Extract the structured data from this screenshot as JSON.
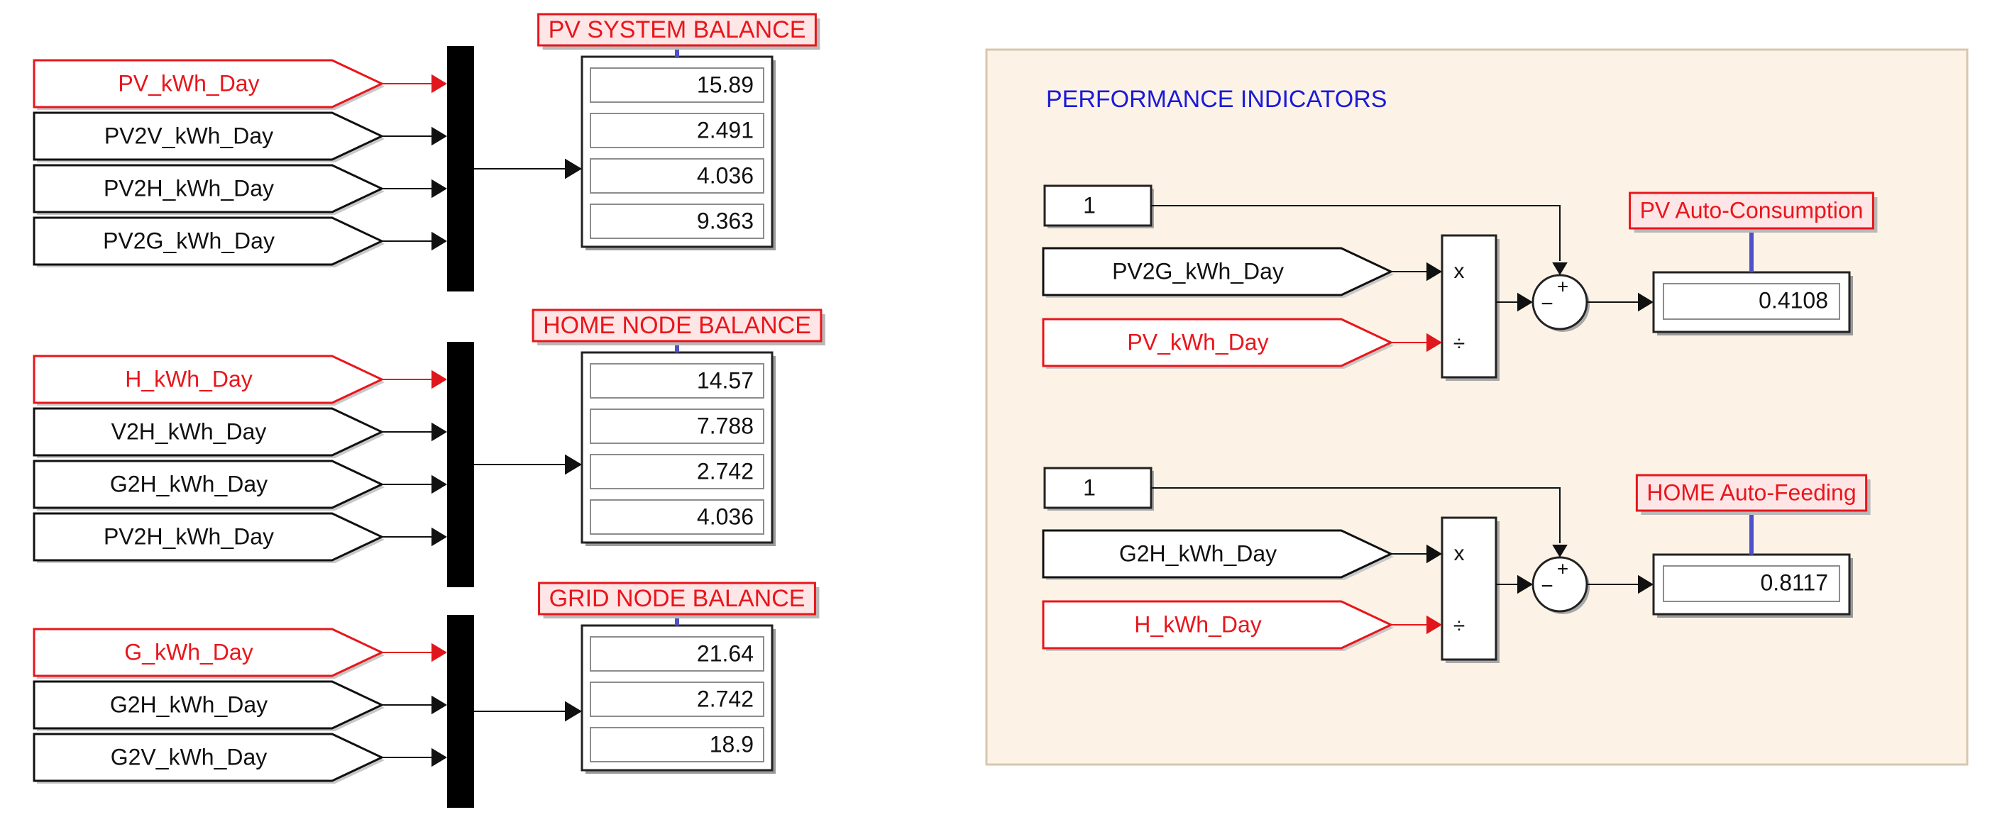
{
  "colors": {
    "signal_red": "#e8161c",
    "arrow_red": "#e0161c",
    "ink": "#111111",
    "label_bg": "#ffe6e6",
    "title_blue": "#1a1adb",
    "panel_bg": "#fcf3e6",
    "panel_border": "#d7c7ad",
    "scope_bar": "#5050c8"
  },
  "left_groups": [
    {
      "title": "PV SYSTEM BALANCE",
      "inputs": [
        {
          "label": "PV_kWh_Day",
          "style": "red"
        },
        {
          "label": "PV2V_kWh_Day",
          "style": "black"
        },
        {
          "label": "PV2H_kWh_Day",
          "style": "black"
        },
        {
          "label": "PV2G_kWh_Day",
          "style": "black"
        }
      ],
      "values": [
        "15.89",
        "2.491",
        "4.036",
        "9.363"
      ]
    },
    {
      "title": "HOME NODE BALANCE",
      "inputs": [
        {
          "label": "H_kWh_Day",
          "style": "red"
        },
        {
          "label": "V2H_kWh_Day",
          "style": "black"
        },
        {
          "label": "G2H_kWh_Day",
          "style": "black"
        },
        {
          "label": "PV2H_kWh_Day",
          "style": "black"
        }
      ],
      "values": [
        "14.57",
        "7.788",
        "2.742",
        "4.036"
      ]
    },
    {
      "title": "GRID NODE BALANCE",
      "inputs": [
        {
          "label": "G_kWh_Day",
          "style": "red"
        },
        {
          "label": "G2H_kWh_Day",
          "style": "black"
        },
        {
          "label": "G2V_kWh_Day",
          "style": "black"
        }
      ],
      "values": [
        "21.64",
        "2.742",
        "18.9"
      ]
    }
  ],
  "panel": {
    "title": "PERFORMANCE INDICATORS",
    "indicators": [
      {
        "constant": "1",
        "input_top": "PV2G_kWh_Day",
        "input_bottom": "PV_kWh_Day",
        "product_ops": [
          "x",
          "÷"
        ],
        "sum_signs": [
          "+",
          "−"
        ],
        "label": "PV Auto-Consumption",
        "value": "0.4108"
      },
      {
        "constant": "1",
        "input_top": "G2H_kWh_Day",
        "input_bottom": "H_kWh_Day",
        "product_ops": [
          "x",
          "÷"
        ],
        "sum_signs": [
          "+",
          "−"
        ],
        "label": "HOME Auto-Feeding",
        "value": "0.8117"
      }
    ]
  }
}
